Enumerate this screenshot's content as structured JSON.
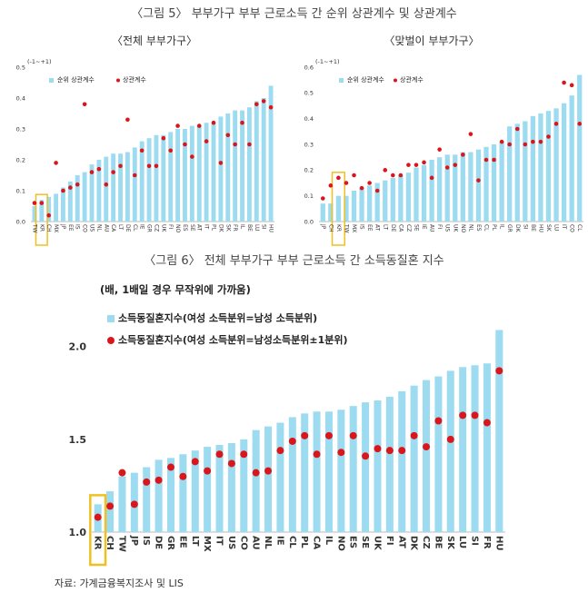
{
  "fig5": {
    "title": "〈그림 5〉 부부가구 부부 근로소득 간 순위 상관계수 및 상관계수"
  },
  "fig6": {
    "title": "〈그림 6〉 전체 부부가구 부부 근로소득 간 소득동질혼 지수",
    "unit_label": "(배, 1배일 경우 무작위에 가까움)"
  },
  "source": "자료: 가계금융복지조사 및 LIS",
  "colors": {
    "bar": "#9ddcf0",
    "dot": "#d9161c",
    "highlight": "#f0c020"
  },
  "chart_data": [
    {
      "id": "left",
      "type": "bar",
      "subtitle": "〈전체 부부가구〉",
      "axis_note": "(-1~+1)",
      "categories": [
        "TW",
        "KR",
        "CH",
        "MX",
        "JP",
        "EE",
        "IS",
        "CO",
        "US",
        "NL",
        "AU",
        "CA",
        "LT",
        "DE",
        "CL",
        "IE",
        "GR",
        "CZ",
        "UK",
        "FI",
        "NO",
        "ES",
        "SE",
        "AT",
        "IT",
        "PL",
        "DK",
        "SK",
        "FR",
        "IL",
        "BE",
        "LU",
        "SI",
        "HU"
      ],
      "series": [
        {
          "name": "순위 상관계수",
          "kind": "bar",
          "values": [
            0.05,
            0.07,
            0.08,
            0.09,
            0.11,
            0.13,
            0.15,
            0.16,
            0.185,
            0.2,
            0.21,
            0.22,
            0.22,
            0.225,
            0.24,
            0.26,
            0.27,
            0.28,
            0.28,
            0.29,
            0.3,
            0.3,
            0.31,
            0.31,
            0.32,
            0.32,
            0.34,
            0.35,
            0.36,
            0.36,
            0.37,
            0.39,
            0.4,
            0.44
          ]
        },
        {
          "name": "상관계수",
          "kind": "dot",
          "values": [
            0.06,
            0.06,
            0.02,
            0.19,
            0.1,
            0.11,
            0.12,
            0.38,
            0.16,
            0.17,
            0.12,
            0.16,
            0.18,
            0.33,
            0.15,
            0.23,
            0.18,
            0.18,
            0.27,
            0.23,
            0.31,
            0.25,
            0.21,
            0.31,
            0.26,
            0.32,
            0.19,
            0.28,
            0.25,
            0.32,
            0.25,
            0.38,
            0.39,
            0.37
          ]
        }
      ],
      "ylim": [
        0,
        0.5
      ],
      "yticks": [
        "0.0",
        "0.1",
        "0.2",
        "0.3",
        "0.4",
        "0.5"
      ],
      "highlight": "KR"
    },
    {
      "id": "right",
      "type": "bar",
      "subtitle": "〈맞벌이 부부가구〉",
      "axis_note": "(-1~+1)",
      "categories": [
        "JP",
        "CH",
        "KR",
        "TW",
        "MX",
        "IS",
        "EE",
        "AT",
        "LT",
        "DE",
        "CA",
        "CZ",
        "SE",
        "IE",
        "AU",
        "FI",
        "US",
        "UK",
        "NO",
        "NL",
        "ES",
        "CL",
        "PL",
        "IL",
        "GR",
        "DK",
        "SI",
        "BE",
        "HU",
        "SK",
        "LU",
        "IT",
        "CO",
        "CL"
      ],
      "series": [
        {
          "name": "순위 상관계수",
          "kind": "bar",
          "values": [
            0.07,
            0.07,
            0.1,
            0.1,
            0.12,
            0.13,
            0.14,
            0.15,
            0.16,
            0.17,
            0.18,
            0.19,
            0.21,
            0.22,
            0.24,
            0.25,
            0.26,
            0.26,
            0.27,
            0.27,
            0.28,
            0.29,
            0.3,
            0.31,
            0.37,
            0.38,
            0.39,
            0.41,
            0.42,
            0.43,
            0.44,
            0.46,
            0.49,
            0.57
          ]
        },
        {
          "name": "상관계수",
          "kind": "dot",
          "values": [
            0.09,
            0.14,
            0.17,
            0.15,
            0.18,
            0.13,
            0.15,
            0.12,
            0.2,
            0.18,
            0.18,
            0.22,
            0.22,
            0.23,
            0.17,
            0.28,
            0.21,
            0.22,
            0.26,
            0.34,
            0.16,
            0.24,
            0.24,
            0.31,
            0.3,
            0.36,
            0.3,
            0.31,
            0.31,
            0.33,
            0.38,
            0.54,
            0.53,
            0.38
          ]
        }
      ],
      "ylim": [
        0,
        0.6
      ],
      "yticks": [
        "0.0",
        "0.1",
        "0.2",
        "0.3",
        "0.4",
        "0.5",
        "0.6"
      ],
      "highlight": "KR"
    },
    {
      "id": "bottom",
      "type": "bar",
      "categories": [
        "KR",
        "CH",
        "TW",
        "JP",
        "IS",
        "DE",
        "GR",
        "EE",
        "LT",
        "MX",
        "IT",
        "US",
        "CO",
        "AU",
        "NL",
        "IE",
        "CL",
        "PL",
        "CA",
        "IL",
        "NO",
        "ES",
        "SE",
        "UK",
        "FI",
        "AT",
        "DK",
        "CZ",
        "BE",
        "SK",
        "LU",
        "SI",
        "FR",
        "HU"
      ],
      "series": [
        {
          "name": "소득동질혼지수(여성 소득분위=남성 소득분위)",
          "kind": "bar",
          "values": [
            1.15,
            1.22,
            1.3,
            1.32,
            1.35,
            1.39,
            1.4,
            1.42,
            1.44,
            1.46,
            1.47,
            1.48,
            1.5,
            1.55,
            1.57,
            1.59,
            1.62,
            1.64,
            1.65,
            1.65,
            1.66,
            1.68,
            1.7,
            1.71,
            1.73,
            1.76,
            1.79,
            1.82,
            1.84,
            1.87,
            1.89,
            1.9,
            1.91,
            2.09
          ]
        },
        {
          "name": "소득동질혼지수(여성 소득분위=남성소득분위±1분위)",
          "kind": "dot",
          "values": [
            1.08,
            1.14,
            1.32,
            1.15,
            1.27,
            1.28,
            1.35,
            1.3,
            1.38,
            1.33,
            1.42,
            1.37,
            1.42,
            1.32,
            1.33,
            1.44,
            1.49,
            1.52,
            1.42,
            1.52,
            1.43,
            1.52,
            1.41,
            1.45,
            1.44,
            1.44,
            1.52,
            1.46,
            1.6,
            1.5,
            1.63,
            1.63,
            1.59,
            1.87
          ]
        }
      ],
      "ylim": [
        1.0,
        2.2
      ],
      "yticks": [
        "1.0",
        "1.5",
        "2.0"
      ],
      "highlight": "KR"
    }
  ]
}
